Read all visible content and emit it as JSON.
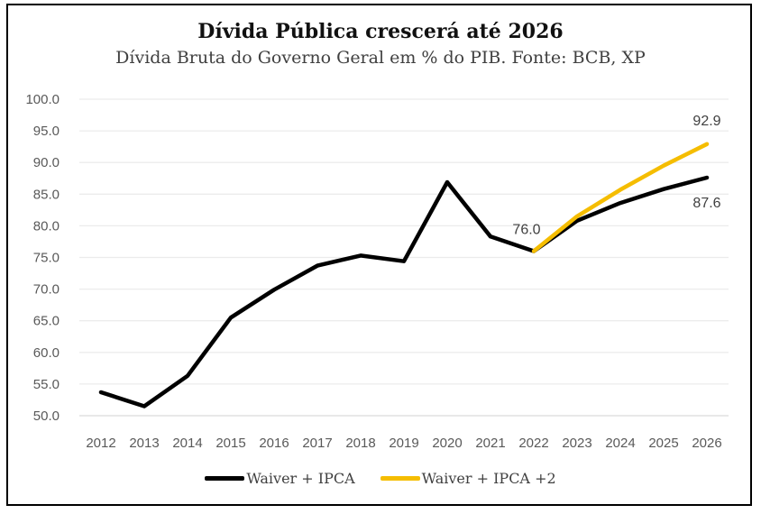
{
  "chart_data": {
    "type": "line",
    "title": "Dívida Pública crescerá até 2026",
    "subtitle": "Dívida Bruta do Governo Geral em % do PIB. Fonte: BCB, XP",
    "xlabel": "",
    "ylabel": "",
    "ylim": [
      50,
      100
    ],
    "ytick_step": 5,
    "y_tick_labels": [
      "50.0",
      "55.0",
      "60.0",
      "65.0",
      "70.0",
      "75.0",
      "80.0",
      "85.0",
      "90.0",
      "95.0",
      "100.0"
    ],
    "grid": true,
    "legend_position": "bottom",
    "categories": [
      "2012",
      "2013",
      "2014",
      "2015",
      "2016",
      "2017",
      "2018",
      "2019",
      "2020",
      "2021",
      "2022",
      "2023",
      "2024",
      "2025",
      "2026"
    ],
    "series": [
      {
        "name": "Waiver + IPCA",
        "color": "#000000",
        "values": [
          53.7,
          51.5,
          56.3,
          65.5,
          69.9,
          73.7,
          75.3,
          74.4,
          86.9,
          78.3,
          76.0,
          80.8,
          83.6,
          85.8,
          87.6
        ]
      },
      {
        "name": "Waiver + IPCA +2",
        "color": "#F5BD00",
        "values": [
          null,
          null,
          null,
          null,
          null,
          null,
          null,
          null,
          null,
          null,
          76.0,
          81.5,
          85.7,
          89.5,
          92.9
        ]
      }
    ],
    "annotations": [
      {
        "series": 0,
        "category": "2022",
        "text": "76.0"
      },
      {
        "series": 1,
        "category": "2026",
        "text": "92.9"
      },
      {
        "series": 0,
        "category": "2026",
        "text": "87.6"
      }
    ]
  }
}
